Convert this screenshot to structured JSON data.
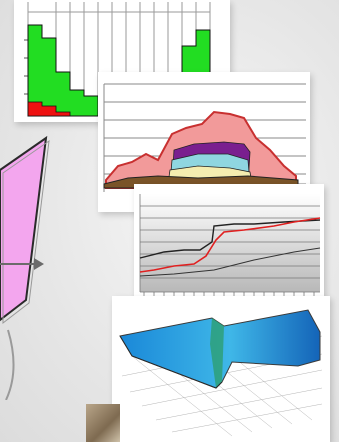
{
  "colors": {
    "background": "#ececec",
    "bar_green": "#22dd22",
    "bar_red": "#ee1111",
    "area_pink": "#f29a9a",
    "area_purple": "#7a1f8f",
    "area_cyan": "#8fd6e0",
    "area_yellow": "#f4edb0",
    "area_brown": "#7a5428",
    "line_red": "#e02020",
    "shape_magenta": "#f3a6ee",
    "arrow_gray": "#6b6b6b",
    "sim_blue": "#1a88d8"
  },
  "icons": {
    "collage": "collage-icon",
    "bar_chart": "bar-chart-icon",
    "area_chart": "stacked-area-chart-icon",
    "line_chart": "line-chart-icon",
    "simulation": "3d-mesh-simulation-icon",
    "arrow": "arrow-right-icon",
    "shape": "trapezoid-shape-icon"
  }
}
